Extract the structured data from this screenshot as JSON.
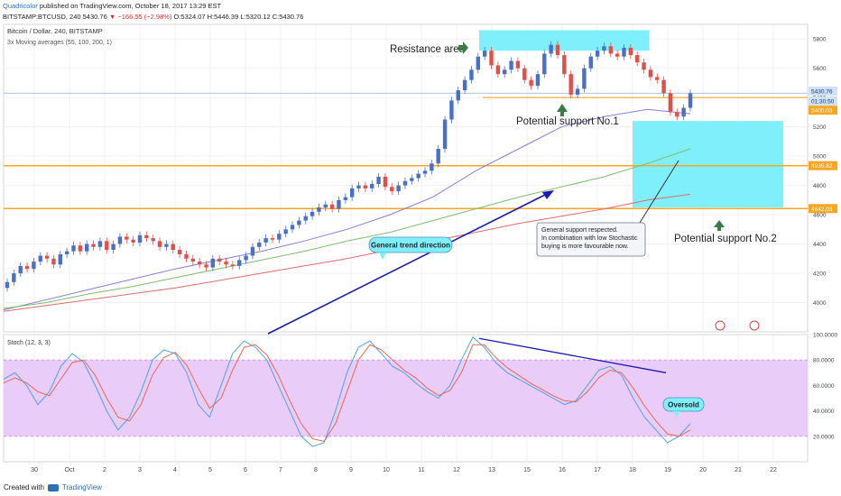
{
  "header": {
    "author": "Quadricolor",
    "published": "published on TradingView.com, October 18, 2017 13:29 EST",
    "symbol": "BITSTAMP:BTCUSD, 240",
    "last": "5430.76",
    "change": "▼ −166.55 (−2.98%)",
    "ohlc": "O:5324.07 H:5446.39 L:5320.12 C:5430.76"
  },
  "footer": {
    "created_with": "Created with",
    "brand": "TradingView"
  },
  "colors": {
    "up": "#4a6fc7",
    "down": "#e0504a",
    "ma55": "#8a79e0",
    "ma100": "#7cbf6e",
    "ma200": "#e06b6b",
    "cyan": "#7ff0fb",
    "orange": "#f5a623",
    "stochK": "#4da3e8",
    "stochD": "#e8685a",
    "stochBand": "#e9ccf7",
    "arrowGreen": "#3a7d44",
    "arrowBlue": "#1a1ab8"
  },
  "chart_data": [
    {
      "type": "candlestick",
      "title": "Bitcoin / Dollar, 240, BITSTAMP",
      "subtitle": "3x Moving averages (55, 100, 200, 1)",
      "ylim": [
        3800,
        5900
      ],
      "y_ticks": [
        4000,
        4200,
        4400,
        4600,
        4800,
        5000,
        5200,
        5400,
        5600,
        5800
      ],
      "price_labels": [
        "5430.76",
        "01:30:50",
        "5400.03",
        "4935.82",
        "4642.03"
      ],
      "horizontal_lines": [
        5400,
        4935,
        4642
      ],
      "closes": [
        4140,
        4200,
        4250,
        4230,
        4280,
        4320,
        4300,
        4260,
        4330,
        4350,
        4390,
        4350,
        4400,
        4380,
        4420,
        4360,
        4400,
        4450,
        4430,
        4410,
        4460,
        4440,
        4420,
        4380,
        4400,
        4360,
        4330,
        4300,
        4280,
        4260,
        4240,
        4300,
        4280,
        4260,
        4250,
        4290,
        4320,
        4380,
        4410,
        4440,
        4430,
        4470,
        4500,
        4530,
        4560,
        4590,
        4620,
        4650,
        4670,
        4640,
        4700,
        4720,
        4780,
        4800,
        4780,
        4810,
        4860,
        4790,
        4760,
        4800,
        4830,
        4850,
        4880,
        4900,
        4950,
        5050,
        5250,
        5380,
        5450,
        5520,
        5590,
        5680,
        5720,
        5620,
        5560,
        5590,
        5650,
        5600,
        5520,
        5480,
        5560,
        5700,
        5760,
        5690,
        5560,
        5420,
        5460,
        5600,
        5680,
        5720,
        5750,
        5700,
        5680,
        5740,
        5690,
        5640,
        5590,
        5540,
        5520,
        5430,
        5300,
        5270,
        5330,
        5430
      ],
      "series": [
        {
          "name": "MA 55",
          "values": [
            3950,
            4020,
            4090,
            4160,
            4230,
            4290,
            4350,
            4420,
            4500,
            4600,
            4720,
            4900,
            5050,
            5200,
            5270,
            5320,
            5290
          ]
        },
        {
          "name": "MA 100",
          "values": [
            3960,
            4000,
            4060,
            4110,
            4170,
            4230,
            4290,
            4350,
            4420,
            4480,
            4560,
            4640,
            4720,
            4790,
            4860,
            4950,
            5050
          ]
        },
        {
          "name": "MA 200",
          "values": [
            3940,
            3980,
            4020,
            4060,
            4100,
            4150,
            4200,
            4250,
            4300,
            4360,
            4420,
            4480,
            4540,
            4590,
            4640,
            4700,
            4740
          ]
        }
      ],
      "annotations": {
        "resistance": "Resistance area",
        "support1": "Potential support No.1",
        "support2": "Potential support No.2",
        "trend": "General trend direction",
        "note": [
          "General support respected.",
          "In combination with low Stochastic",
          "buying is more favourable now."
        ]
      }
    },
    {
      "type": "line",
      "title": "Stoch (12, 3, 3)",
      "ylim": [
        0,
        100
      ],
      "y_ticks": [
        "100.0000",
        "80.0000",
        "60.0000",
        "40.0000",
        "20.0000"
      ],
      "band": [
        20,
        80
      ],
      "series": [
        {
          "name": "%K",
          "values": [
            65,
            70,
            60,
            45,
            55,
            75,
            85,
            78,
            60,
            40,
            25,
            35,
            55,
            80,
            88,
            85,
            70,
            45,
            35,
            60,
            85,
            95,
            90,
            80,
            60,
            40,
            20,
            12,
            15,
            40,
            70,
            90,
            95,
            85,
            75,
            70,
            62,
            55,
            50,
            60,
            80,
            98,
            90,
            78,
            70,
            65,
            60,
            55,
            50,
            45,
            48,
            60,
            72,
            75,
            68,
            50,
            35,
            25,
            15,
            20,
            30
          ]
        },
        {
          "name": "%D",
          "values": [
            62,
            66,
            62,
            55,
            52,
            65,
            78,
            80,
            68,
            50,
            35,
            32,
            45,
            68,
            82,
            86,
            76,
            58,
            42,
            50,
            72,
            90,
            92,
            84,
            68,
            48,
            30,
            18,
            16,
            30,
            55,
            80,
            92,
            88,
            80,
            72,
            66,
            58,
            52,
            56,
            70,
            92,
            92,
            82,
            74,
            68,
            62,
            57,
            52,
            48,
            47,
            55,
            66,
            72,
            70,
            58,
            44,
            32,
            22,
            20,
            25
          ]
        }
      ],
      "annotation": "Oversold"
    }
  ],
  "x_ticks": [
    "30",
    "Oct",
    "2",
    "3",
    "4",
    "5",
    "6",
    "7",
    "8",
    "9",
    "10",
    "11",
    "12",
    "13",
    "15",
    "16",
    "17",
    "18",
    "19",
    "20",
    "21",
    "22"
  ]
}
